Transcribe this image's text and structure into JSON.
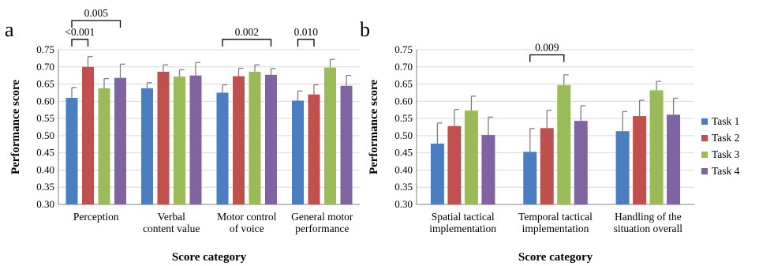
{
  "chart_data": [
    {
      "type": "bar",
      "panel_label": "a",
      "categories": [
        [
          "Perception"
        ],
        [
          "Verbal",
          "content value"
        ],
        [
          "Motor control",
          "of voice"
        ],
        [
          "General motor",
          "performance"
        ]
      ],
      "series": [
        {
          "name": "Task 1",
          "values": [
            0.61,
            0.638,
            0.625,
            0.602
          ],
          "errors": [
            0.03,
            0.016,
            0.023,
            0.028
          ]
        },
        {
          "name": "Task 2",
          "values": [
            0.7,
            0.686,
            0.673,
            0.62
          ],
          "errors": [
            0.03,
            0.02,
            0.023,
            0.028
          ]
        },
        {
          "name": "Task 3",
          "values": [
            0.638,
            0.672,
            0.686,
            0.698
          ],
          "errors": [
            0.028,
            0.02,
            0.02,
            0.024
          ]
        },
        {
          "name": "Task 4",
          "values": [
            0.668,
            0.675,
            0.677,
            0.645
          ],
          "errors": [
            0.04,
            0.038,
            0.018,
            0.03
          ]
        }
      ],
      "ylabel": "Performance score",
      "xlabel": "Score category",
      "ylim": [
        0.3,
        0.75
      ],
      "yticks": [
        "0.30",
        "0.35",
        "0.40",
        "0.45",
        "0.50",
        "0.55",
        "0.60",
        "0.65",
        "0.70",
        "0.75"
      ],
      "grid": true,
      "annotations": [
        {
          "label": "<0.001",
          "category": 0,
          "from_series": 0,
          "to_series": 1,
          "level": 0.78
        },
        {
          "label": "0.005",
          "category": 0,
          "from_series": 0,
          "to_series": 3,
          "level": 0.835
        },
        {
          "label": "0.002",
          "category": 2,
          "from_series": 0,
          "to_series": 3,
          "level": 0.78
        },
        {
          "label": "0.010",
          "category": 3,
          "from_series": 0,
          "to_series": 1,
          "level": 0.78
        }
      ]
    },
    {
      "type": "bar",
      "panel_label": "b",
      "categories": [
        [
          "Spatial tactical",
          "implementation"
        ],
        [
          "Temporal tactical",
          "implementation"
        ],
        [
          "Handling of the",
          "situation overall"
        ]
      ],
      "series": [
        {
          "name": "Task 1",
          "values": [
            0.477,
            0.453,
            0.513
          ],
          "errors": [
            0.06,
            0.068,
            0.057
          ]
        },
        {
          "name": "Task 2",
          "values": [
            0.528,
            0.522,
            0.557
          ],
          "errors": [
            0.048,
            0.052,
            0.046
          ]
        },
        {
          "name": "Task 3",
          "values": [
            0.573,
            0.647,
            0.632
          ],
          "errors": [
            0.042,
            0.03,
            0.026
          ]
        },
        {
          "name": "Task 4",
          "values": [
            0.502,
            0.543,
            0.561
          ],
          "errors": [
            0.052,
            0.044,
            0.048
          ]
        }
      ],
      "ylabel": "Performance score",
      "xlabel": "Score category",
      "ylim": [
        0.3,
        0.75
      ],
      "yticks": [
        "0.30",
        "0.35",
        "0.40",
        "0.45",
        "0.50",
        "0.55",
        "0.60",
        "0.65",
        "0.70",
        "0.75"
      ],
      "grid": true,
      "annotations": [
        {
          "label": "0.009",
          "category": 1,
          "from_series": 0,
          "to_series": 2,
          "level": 0.735
        }
      ]
    }
  ],
  "legend": {
    "placement": "right",
    "entries": [
      "Task 1",
      "Task 2",
      "Task 3",
      "Task 4"
    ]
  },
  "colors": {
    "Task 1": "#4a7ec0",
    "Task 2": "#c0504d",
    "Task 3": "#9bbb59",
    "Task 4": "#8064a2"
  }
}
